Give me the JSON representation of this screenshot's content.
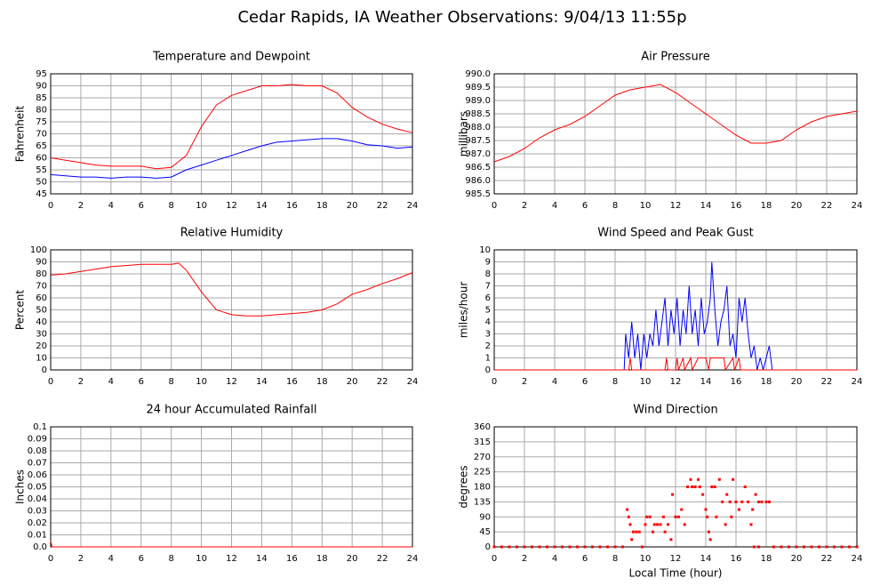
{
  "title": "Cedar Rapids, IA Weather Observations: 9/04/13 11:55p",
  "chart_data": [
    {
      "type": "line",
      "title": "Temperature and Dewpoint",
      "ylabel": "Fahrenheit",
      "xlim": [
        0,
        24
      ],
      "xticks": [
        0,
        2,
        4,
        6,
        8,
        10,
        12,
        14,
        16,
        18,
        20,
        22,
        24
      ],
      "ylim": [
        45,
        95
      ],
      "yticks": [
        45,
        50,
        55,
        60,
        65,
        70,
        75,
        80,
        85,
        90,
        95
      ],
      "grid": true,
      "series": [
        {
          "name": "Temperature",
          "color": "#ff0000",
          "x": [
            0,
            1,
            2,
            3,
            4,
            5,
            6,
            7,
            8,
            9,
            10,
            11,
            12,
            13,
            14,
            15,
            16,
            17,
            18,
            19,
            20,
            21,
            22,
            23,
            24
          ],
          "values": [
            60,
            59,
            58,
            57,
            56.5,
            56.5,
            56.5,
            55.5,
            56,
            61,
            73,
            82,
            86,
            88,
            90,
            90,
            90.5,
            90,
            90,
            87,
            81,
            77,
            74,
            72,
            70.5
          ]
        },
        {
          "name": "Dewpoint",
          "color": "#0000ff",
          "x": [
            0,
            1,
            2,
            3,
            4,
            5,
            6,
            7,
            8,
            9,
            10,
            11,
            12,
            13,
            14,
            15,
            16,
            17,
            18,
            19,
            20,
            21,
            22,
            23,
            24
          ],
          "values": [
            53,
            52.5,
            52,
            52,
            51.5,
            52,
            52,
            51.5,
            52,
            55,
            57,
            59,
            61,
            63,
            65,
            66.5,
            67,
            67.5,
            68,
            68,
            67,
            65.5,
            65,
            64,
            64.5
          ]
        }
      ]
    },
    {
      "type": "line",
      "title": "Air Pressure",
      "ylabel": "millibars",
      "xlim": [
        0,
        24
      ],
      "xticks": [
        0,
        2,
        4,
        6,
        8,
        10,
        12,
        14,
        16,
        18,
        20,
        22,
        24
      ],
      "ylim": [
        985.5,
        990
      ],
      "yticks": [
        985.5,
        {
          "value": 986,
          "label": "986.0"
        },
        986.5,
        {
          "value": 987,
          "label": "987.0"
        },
        987.5,
        {
          "value": 988,
          "label": "988.0"
        },
        988.5,
        {
          "value": 989,
          "label": "989.0"
        },
        989.5,
        {
          "value": 990,
          "label": "990.0"
        }
      ],
      "grid": true,
      "series": [
        {
          "name": "Pressure",
          "color": "#ff0000",
          "x": [
            0,
            1,
            2,
            3,
            4,
            5,
            6,
            7,
            8,
            9,
            10,
            11,
            12,
            13,
            14,
            15,
            16,
            17,
            18,
            19,
            20,
            21,
            22,
            23,
            24
          ],
          "values": [
            986.7,
            986.9,
            987.2,
            987.6,
            987.9,
            988.1,
            988.4,
            988.8,
            989.2,
            989.4,
            989.5,
            989.6,
            989.3,
            988.9,
            988.5,
            988.1,
            987.7,
            987.4,
            987.4,
            987.5,
            987.9,
            988.2,
            988.4,
            988.5,
            988.6
          ]
        }
      ]
    },
    {
      "type": "line",
      "title": "Relative Humidity",
      "ylabel": "Percent",
      "xlim": [
        0,
        24
      ],
      "xticks": [
        0,
        2,
        4,
        6,
        8,
        10,
        12,
        14,
        16,
        18,
        20,
        22,
        24
      ],
      "ylim": [
        0,
        100
      ],
      "yticks": [
        0,
        10,
        20,
        30,
        40,
        50,
        60,
        70,
        80,
        90,
        100
      ],
      "grid": true,
      "series": [
        {
          "name": "Relative Humidity",
          "color": "#ff0000",
          "x": [
            0,
            1,
            2,
            3,
            4,
            5,
            6,
            7,
            8,
            8.5,
            9,
            10,
            11,
            12,
            13,
            14,
            15,
            16,
            17,
            18,
            19,
            20,
            21,
            22,
            23,
            24
          ],
          "values": [
            79,
            80,
            82,
            84,
            86,
            87,
            88,
            88,
            88,
            89,
            83,
            65,
            50,
            46,
            45,
            45,
            46,
            47,
            48,
            50,
            55,
            63,
            67,
            72,
            76,
            81
          ]
        }
      ]
    },
    {
      "type": "line",
      "title": "Wind Speed and Peak Gust",
      "ylabel": "miles/hour",
      "xlim": [
        0,
        24
      ],
      "xticks": [
        0,
        2,
        4,
        6,
        8,
        10,
        12,
        14,
        16,
        18,
        20,
        22,
        24
      ],
      "ylim": [
        0,
        10
      ],
      "yticks": [
        0,
        1,
        2,
        3,
        4,
        5,
        6,
        7,
        8,
        9,
        10
      ],
      "grid": true,
      "series": [
        {
          "name": "Wind Speed",
          "color": "#0000ff",
          "x": [
            0,
            8.6,
            8.7,
            8.9,
            9.1,
            9.3,
            9.5,
            9.7,
            9.9,
            10.1,
            10.3,
            10.5,
            10.7,
            10.9,
            11.1,
            11.3,
            11.5,
            11.7,
            11.9,
            12.1,
            12.3,
            12.5,
            12.7,
            12.9,
            13.1,
            13.3,
            13.5,
            13.7,
            13.9,
            14.1,
            14.3,
            14.4,
            14.6,
            14.8,
            15,
            15.2,
            15.4,
            15.6,
            15.8,
            16,
            16.2,
            16.4,
            16.6,
            16.8,
            17,
            17.2,
            17.4,
            17.6,
            17.8,
            18.2,
            18.4,
            24
          ],
          "values": [
            0,
            0,
            3,
            1,
            4,
            1,
            3,
            0,
            3,
            1,
            3,
            2,
            5,
            2,
            4,
            6,
            2,
            5,
            3,
            6,
            2,
            5,
            3,
            7,
            3,
            5,
            2,
            6,
            3,
            4,
            6,
            9,
            5,
            2,
            4,
            5,
            7,
            2,
            3,
            1,
            6,
            4,
            6,
            3,
            1,
            2,
            0,
            1,
            0,
            2,
            0,
            0
          ]
        },
        {
          "name": "Peak Gust",
          "color": "#ff0000",
          "x": [
            0,
            8.9,
            9,
            9.1,
            11.3,
            11.4,
            11.5,
            12,
            12.1,
            12.2,
            12.5,
            12.6,
            13,
            13.1,
            13.5,
            14,
            14.2,
            14.3,
            15.2,
            15.3,
            15.8,
            15.9,
            16.2,
            16.3,
            24
          ],
          "values": [
            0,
            0,
            1,
            0,
            0,
            1,
            0,
            0,
            1,
            0,
            1,
            0,
            1,
            0,
            1,
            1,
            0,
            1,
            1,
            0,
            1,
            0,
            1,
            0,
            0
          ]
        }
      ]
    },
    {
      "type": "line",
      "title": "24 hour Accumulated Rainfall",
      "ylabel": "Inches",
      "xlim": [
        0,
        24
      ],
      "xticks": [
        0,
        2,
        4,
        6,
        8,
        10,
        12,
        14,
        16,
        18,
        20,
        22,
        24
      ],
      "ylim": [
        0,
        0.1
      ],
      "yticks": [
        {
          "value": 0,
          "label": "0.0"
        },
        0.01,
        0.02,
        0.03,
        0.04,
        0.05,
        0.06,
        0.07,
        0.08,
        0.09,
        0.1
      ],
      "grid": true,
      "series": [
        {
          "name": "Rainfall",
          "color": "#ff0000",
          "x": [
            0,
            0.1,
            24
          ],
          "values": [
            0.005,
            0,
            0
          ]
        }
      ]
    },
    {
      "type": "scatter",
      "title": "Wind Direction",
      "ylabel": "degrees",
      "xlabel": "Local Time (hour)",
      "xlim": [
        0,
        24
      ],
      "xticks": [
        0,
        2,
        4,
        6,
        8,
        10,
        12,
        14,
        16,
        18,
        20,
        22,
        24
      ],
      "ylim": [
        0,
        360
      ],
      "yticks": [
        0,
        45,
        90,
        135,
        180,
        225,
        270,
        315,
        360
      ],
      "grid": true,
      "series": [
        {
          "name": "Wind Direction",
          "color": "#ff0000",
          "x": [
            0,
            0.5,
            1,
            1.5,
            2,
            2.5,
            3,
            3.5,
            4,
            4.5,
            5,
            5.5,
            6,
            6.5,
            7,
            7.5,
            8,
            8.5,
            8.8,
            8.9,
            9,
            9.1,
            9.2,
            9.4,
            9.6,
            9.8,
            10,
            10.1,
            10.3,
            10.5,
            10.6,
            10.8,
            11,
            11.2,
            11.3,
            11.5,
            11.7,
            11.8,
            12,
            12.2,
            12.4,
            12.6,
            12.8,
            13,
            13.1,
            13.3,
            13.5,
            13.6,
            13.8,
            14,
            14.1,
            14.2,
            14.3,
            14.4,
            14.6,
            14.7,
            14.9,
            15.1,
            15.3,
            15.4,
            15.6,
            15.7,
            15.8,
            16,
            16.2,
            16.4,
            16.6,
            16.8,
            17,
            17.1,
            17.3,
            17.5,
            17.7,
            18,
            18.2,
            17.2,
            17.5,
            18.5,
            19,
            19.5,
            20,
            20.5,
            21,
            21.5,
            22,
            22.5,
            23,
            23.5,
            24
          ],
          "values": [
            0,
            0,
            0,
            0,
            0,
            0,
            0,
            0,
            0,
            0,
            0,
            0,
            0,
            0,
            0,
            0,
            0,
            0,
            112,
            90,
            67,
            22,
            45,
            45,
            45,
            0,
            67,
            90,
            90,
            45,
            67,
            67,
            67,
            90,
            45,
            67,
            22,
            157,
            90,
            90,
            112,
            67,
            180,
            202,
            180,
            180,
            202,
            180,
            157,
            112,
            90,
            45,
            22,
            180,
            180,
            90,
            202,
            135,
            67,
            157,
            135,
            90,
            202,
            135,
            112,
            135,
            180,
            135,
            67,
            112,
            157,
            135,
            135,
            135,
            135,
            0,
            0,
            0,
            0,
            0,
            0,
            0,
            0,
            0,
            0,
            0,
            0,
            0,
            0
          ]
        }
      ]
    }
  ]
}
